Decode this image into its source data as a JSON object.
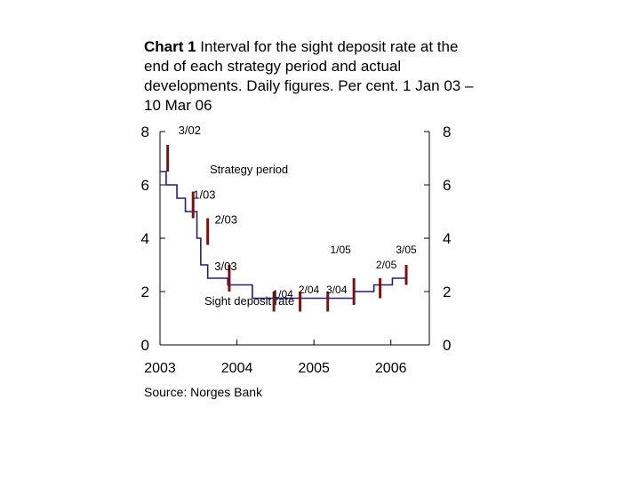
{
  "title": {
    "prefix": "Chart 1",
    "text": " Interval for the sight deposit rate at the end of each strategy period and actual developments. Daily figures. Per cent. 1 Jan 03 – 10 Mar 06"
  },
  "source": "Source: Norges Bank",
  "chart_data": {
    "type": "line",
    "xlim": [
      2003.0,
      2006.5
    ],
    "ylim": [
      0,
      8
    ],
    "y_ticks": [
      0,
      2,
      4,
      6,
      8
    ],
    "x_ticks": [
      {
        "label": "2003",
        "value": 2003.0
      },
      {
        "label": "2004",
        "value": 2004.0
      },
      {
        "label": "2005",
        "value": 2005.0
      },
      {
        "label": "2006",
        "value": 2006.0
      }
    ],
    "colors": {
      "rate": "#1f1f7a",
      "interval": "#7a1414",
      "axis": "#000000"
    },
    "series": [
      {
        "name": "Sight deposit rate",
        "step_points": [
          [
            2003.0,
            6.5
          ],
          [
            2003.08,
            6.0
          ],
          [
            2003.22,
            5.5
          ],
          [
            2003.33,
            5.0
          ],
          [
            2003.48,
            4.0
          ],
          [
            2003.53,
            3.0
          ],
          [
            2003.62,
            2.5
          ],
          [
            2003.88,
            2.25
          ],
          [
            2004.2,
            1.75
          ],
          [
            2005.49,
            1.75
          ],
          [
            2005.52,
            2.0
          ],
          [
            2005.72,
            2.0
          ],
          [
            2005.78,
            2.25
          ],
          [
            2005.95,
            2.25
          ],
          [
            2006.02,
            2.5
          ],
          [
            2006.19,
            2.5
          ]
        ]
      }
    ],
    "intervals": [
      {
        "label": "3/02",
        "x": 2003.1,
        "low": 6.5,
        "high": 7.5
      },
      {
        "label": "1/03",
        "x": 2003.43,
        "low": 4.75,
        "high": 5.75
      },
      {
        "label": "2/03",
        "x": 2003.62,
        "low": 3.75,
        "high": 4.75
      },
      {
        "label": "3/03",
        "x": 2003.9,
        "low": 2.0,
        "high": 3.0
      },
      {
        "label": "1/04",
        "x": 2004.48,
        "low": 1.25,
        "high": 2.0
      },
      {
        "label": "2/04",
        "x": 2004.82,
        "low": 1.25,
        "high": 2.0
      },
      {
        "label": "3/04",
        "x": 2005.18,
        "low": 1.25,
        "high": 2.0
      },
      {
        "label": "1/05",
        "x": 2005.52,
        "low": 1.5,
        "high": 2.5
      },
      {
        "label": "2/05",
        "x": 2005.86,
        "low": 1.75,
        "high": 2.5
      },
      {
        "label": "3/05",
        "x": 2006.2,
        "low": 2.25,
        "high": 3.0
      }
    ],
    "annotations": {
      "strategy_period": "Strategy period",
      "sight_deposit_rate": "Sight deposit rate"
    },
    "grid": false
  }
}
